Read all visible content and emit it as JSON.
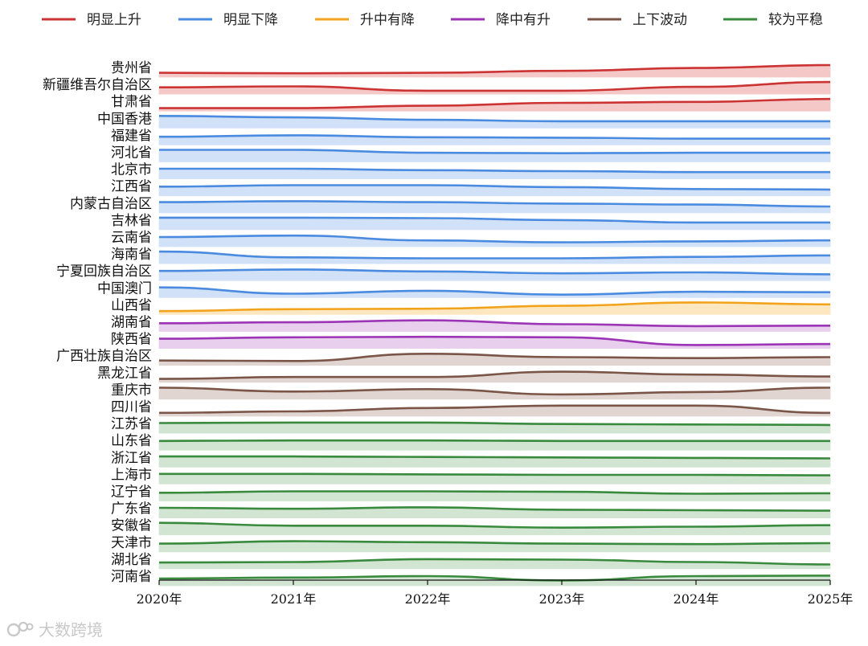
{
  "chart_data": {
    "type": "area",
    "x": [
      "2020年",
      "2021年",
      "2022年",
      "2023年",
      "2024年",
      "2025年"
    ],
    "legend": [
      {
        "key": "up",
        "label": "明显上升",
        "color": "#cc3333",
        "fill": "#f5c6c6"
      },
      {
        "key": "down",
        "label": "明显下降",
        "color": "#4a8be0",
        "fill": "#cfe0f7"
      },
      {
        "key": "upthendown",
        "label": "升中有降",
        "color": "#f2a31c",
        "fill": "#fde6bd"
      },
      {
        "key": "downthenup",
        "label": "降中有升",
        "color": "#9b35b5",
        "fill": "#e8cdee"
      },
      {
        "key": "fluct",
        "label": "上下波动",
        "color": "#7a5548",
        "fill": "#e0d3cf"
      },
      {
        "key": "flat",
        "label": "较为平稳",
        "color": "#3a8a3e",
        "fill": "#cfe4d0"
      }
    ],
    "series": [
      {
        "name": "贵州省",
        "group": "up",
        "values": [
          0.2,
          0.15,
          0.2,
          0.4,
          0.7,
          1.0
        ]
      },
      {
        "name": "新疆维吾尔自治区",
        "group": "up",
        "values": [
          0.45,
          0.55,
          0.1,
          0.1,
          0.5,
          1.0
        ]
      },
      {
        "name": "甘肃省",
        "group": "up",
        "values": [
          0.05,
          0.05,
          0.3,
          0.6,
          0.7,
          1.0
        ]
      },
      {
        "name": "中国香港",
        "group": "down",
        "values": [
          1.0,
          0.85,
          0.6,
          0.45,
          0.45,
          0.45
        ]
      },
      {
        "name": "福建省",
        "group": "down",
        "values": [
          0.6,
          0.75,
          0.55,
          0.5,
          0.4,
          0.4
        ]
      },
      {
        "name": "河北省",
        "group": "down",
        "values": [
          1.0,
          1.0,
          0.7,
          0.65,
          0.7,
          0.7
        ]
      },
      {
        "name": "北京市",
        "group": "down",
        "values": [
          0.8,
          0.8,
          0.65,
          0.55,
          0.45,
          0.45
        ]
      },
      {
        "name": "江西省",
        "group": "down",
        "values": [
          0.7,
          0.85,
          0.85,
          0.65,
          0.45,
          0.4
        ]
      },
      {
        "name": "内蒙古自治区",
        "group": "down",
        "values": [
          0.85,
          0.95,
          0.85,
          0.7,
          0.6,
          0.4
        ]
      },
      {
        "name": "吉林省",
        "group": "down",
        "values": [
          1.0,
          1.0,
          0.95,
          0.75,
          0.5,
          0.5
        ]
      },
      {
        "name": "云南省",
        "group": "down",
        "values": [
          0.75,
          0.9,
          0.4,
          0.2,
          0.3,
          0.4
        ]
      },
      {
        "name": "海南省",
        "group": "down",
        "values": [
          1.0,
          0.4,
          0.3,
          0.3,
          0.45,
          0.6
        ]
      },
      {
        "name": "宁夏回族自治区",
        "group": "down",
        "values": [
          0.75,
          0.9,
          0.7,
          0.5,
          0.6,
          0.4
        ]
      },
      {
        "name": "中国澳门",
        "group": "down",
        "values": [
          0.8,
          0.15,
          0.45,
          0.05,
          0.35,
          0.3
        ]
      },
      {
        "name": "山西省",
        "group": "upthendown",
        "values": [
          0.1,
          0.3,
          0.35,
          0.65,
          1.0,
          0.8
        ]
      },
      {
        "name": "湖南省",
        "group": "downthenup",
        "values": [
          0.6,
          0.7,
          0.9,
          0.5,
          0.3,
          0.35
        ]
      },
      {
        "name": "陕西省",
        "group": "downthenup",
        "values": [
          0.75,
          0.9,
          0.95,
          0.9,
          0.1,
          0.2
        ]
      },
      {
        "name": "广西壮族自治区",
        "group": "fluct",
        "values": [
          0.25,
          0.2,
          0.95,
          0.6,
          0.5,
          0.6
        ]
      },
      {
        "name": "黑龙江省",
        "group": "fluct",
        "values": [
          0.1,
          0.3,
          0.3,
          0.85,
          0.55,
          0.35
        ]
      },
      {
        "name": "重庆市",
        "group": "fluct",
        "values": [
          0.95,
          0.55,
          0.8,
          0.25,
          0.5,
          0.95
        ]
      },
      {
        "name": "四川省",
        "group": "fluct",
        "values": [
          0.1,
          0.25,
          0.6,
          0.85,
          0.85,
          0.1
        ]
      },
      {
        "name": "江苏省",
        "group": "flat",
        "values": [
          0.8,
          0.85,
          0.85,
          0.7,
          0.65,
          0.6
        ]
      },
      {
        "name": "山东省",
        "group": "flat",
        "values": [
          0.7,
          0.75,
          0.75,
          0.7,
          0.7,
          0.7
        ]
      },
      {
        "name": "浙江省",
        "group": "flat",
        "values": [
          0.85,
          0.85,
          0.8,
          0.75,
          0.7,
          0.65
        ]
      },
      {
        "name": "上海市",
        "group": "flat",
        "values": [
          0.8,
          0.8,
          0.75,
          0.7,
          0.7,
          0.65
        ]
      },
      {
        "name": "辽宁省",
        "group": "flat",
        "values": [
          0.6,
          0.75,
          0.75,
          0.7,
          0.5,
          0.55
        ]
      },
      {
        "name": "广东省",
        "group": "flat",
        "values": [
          0.8,
          0.7,
          0.85,
          0.6,
          0.55,
          0.5
        ]
      },
      {
        "name": "安徽省",
        "group": "flat",
        "values": [
          1.0,
          0.7,
          0.7,
          0.5,
          0.6,
          0.75
        ]
      },
      {
        "name": "天津市",
        "group": "flat",
        "values": [
          0.6,
          0.85,
          0.75,
          0.6,
          0.55,
          0.65
        ]
      },
      {
        "name": "湖北省",
        "group": "flat",
        "values": [
          0.4,
          0.45,
          0.75,
          0.7,
          0.45,
          0.2
        ]
      },
      {
        "name": "河南省",
        "group": "flat",
        "values": [
          0.5,
          0.6,
          0.75,
          0.3,
          0.75,
          0.8
        ]
      }
    ]
  },
  "watermark": {
    "text": "大数跨境"
  }
}
